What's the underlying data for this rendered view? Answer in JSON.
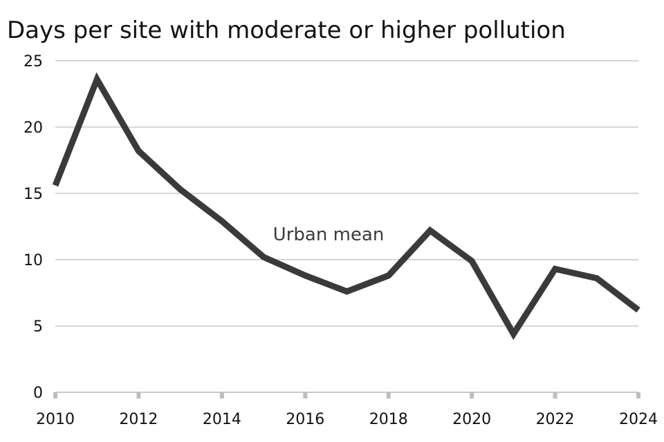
{
  "chart_data": {
    "type": "line",
    "title": "Days per site with moderate or higher pollution",
    "xlabel": "",
    "ylabel": "",
    "x": [
      2010,
      2011,
      2012,
      2013,
      2014,
      2015,
      2016,
      2017,
      2018,
      2019,
      2020,
      2021,
      2022,
      2023,
      2024
    ],
    "series": [
      {
        "name": "Urban mean",
        "values": [
          15.6,
          23.6,
          18.2,
          15.3,
          12.9,
          10.2,
          8.8,
          7.6,
          8.8,
          12.2,
          9.9,
          4.4,
          9.3,
          8.6,
          6.2
        ],
        "color": "#3a3a3a"
      }
    ],
    "xlim": [
      2010,
      2024
    ],
    "ylim": [
      0,
      25
    ],
    "xticks": [
      "2010",
      "2012",
      "2014",
      "2016",
      "2018",
      "2020",
      "2022",
      "2024"
    ],
    "yticks": [
      "0",
      "5",
      "10",
      "15",
      "20",
      "25"
    ],
    "grid": "horizontal",
    "legend": "none",
    "series_label_annotation": "Urban mean"
  }
}
